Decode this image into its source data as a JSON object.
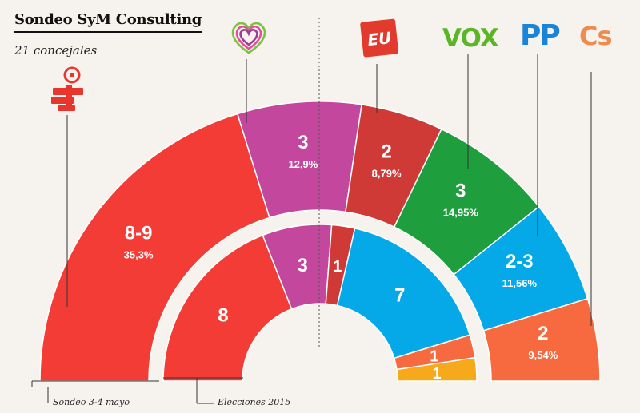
{
  "header": {
    "title": "Sondeo SyM Consulting",
    "subtitle": "21 concejales"
  },
  "logos": {
    "vox": "VOX",
    "pp": "PP",
    "cs": "Cs",
    "psoe": "psoe-rose-icon",
    "compromis": "compromis-heart-icon",
    "eu": "eu-badge-icon"
  },
  "footnotes": {
    "survey": "Sondeo 3-4 mayo",
    "election": "Elecciones 2015"
  },
  "colors": {
    "psoe": "#f43c36",
    "compromis": "#c2479d",
    "eu": "#cf3a37",
    "vox": "#1f9e3e",
    "pp": "#06a9e8",
    "cs": "#f76a40",
    "other": "#f7a91c"
  },
  "chart_data": {
    "type": "parliament-semicircle",
    "total_seats": 21,
    "series": [
      {
        "name": "Sondeo 3-4 mayo",
        "segments": [
          {
            "party": "psoe",
            "value": 8.5,
            "seats_label": "8-9",
            "pct": "35,3%"
          },
          {
            "party": "compromis",
            "value": 3,
            "seats_label": "3",
            "pct": "12,9%"
          },
          {
            "party": "eu",
            "value": 2,
            "seats_label": "2",
            "pct": "8,79%"
          },
          {
            "party": "vox",
            "value": 3,
            "seats_label": "3",
            "pct": "14,95%"
          },
          {
            "party": "pp",
            "value": 2.5,
            "seats_label": "2-3",
            "pct": "11,56%"
          },
          {
            "party": "cs",
            "value": 2,
            "seats_label": "2",
            "pct": "9,54%"
          }
        ]
      },
      {
        "name": "Elecciones 2015",
        "segments": [
          {
            "party": "psoe",
            "value": 8,
            "seats_label": "8",
            "pct": ""
          },
          {
            "party": "compromis",
            "value": 3,
            "seats_label": "3",
            "pct": ""
          },
          {
            "party": "eu",
            "value": 1,
            "seats_label": "1",
            "pct": ""
          },
          {
            "party": "pp",
            "value": 7,
            "seats_label": "7",
            "pct": ""
          },
          {
            "party": "cs",
            "value": 1,
            "seats_label": "1",
            "pct": ""
          },
          {
            "party": "other",
            "value": 1,
            "seats_label": "1",
            "pct": ""
          }
        ]
      }
    ]
  }
}
